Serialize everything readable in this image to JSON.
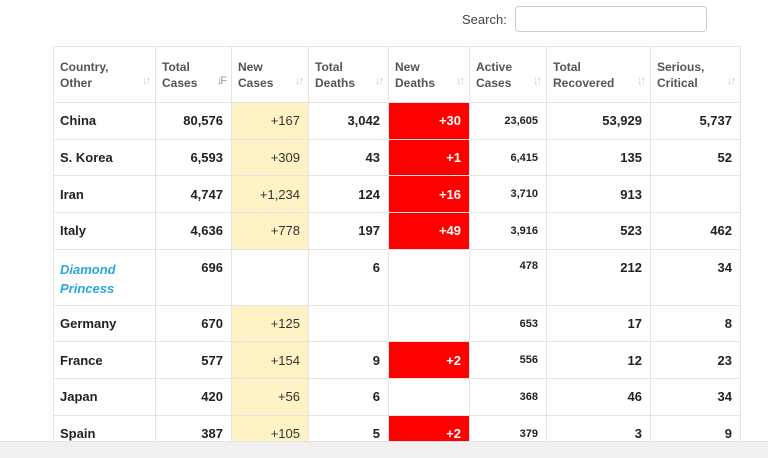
{
  "search": {
    "label": "Search:",
    "value": ""
  },
  "headers": [
    {
      "line1": "Country,",
      "line2": "Other",
      "sort": "↓↑"
    },
    {
      "line1": "Total",
      "line2": "Cases",
      "sort": "↓F"
    },
    {
      "line1": "New",
      "line2": "Cases",
      "sort": "↓↑"
    },
    {
      "line1": "Total",
      "line2": "Deaths",
      "sort": "↓↑"
    },
    {
      "line1": "New",
      "line2": "Deaths",
      "sort": "↓↑"
    },
    {
      "line1": "Active",
      "line2": "Cases",
      "sort": "↓↑"
    },
    {
      "line1": "Total",
      "line2": "Recovered",
      "sort": "↓↑"
    },
    {
      "line1": "Serious,",
      "line2": "Critical",
      "sort": "↓↑"
    }
  ],
  "rows": [
    {
      "country": "China",
      "total_cases": "80,576",
      "new_cases": "+167",
      "total_deaths": "3,042",
      "new_deaths": "+30",
      "active_cases": "23,605",
      "total_recovered": "53,929",
      "serious_critical": "5,737"
    },
    {
      "country": "S. Korea",
      "total_cases": "6,593",
      "new_cases": "+309",
      "total_deaths": "43",
      "new_deaths": "+1",
      "active_cases": "6,415",
      "total_recovered": "135",
      "serious_critical": "52"
    },
    {
      "country": "Iran",
      "total_cases": "4,747",
      "new_cases": "+1,234",
      "total_deaths": "124",
      "new_deaths": "+16",
      "active_cases": "3,710",
      "total_recovered": "913",
      "serious_critical": ""
    },
    {
      "country": "Italy",
      "total_cases": "4,636",
      "new_cases": "+778",
      "total_deaths": "197",
      "new_deaths": "+49",
      "active_cases": "3,916",
      "total_recovered": "523",
      "serious_critical": "462"
    },
    {
      "country": "Diamond Princess",
      "total_cases": "696",
      "new_cases": "",
      "total_deaths": "6",
      "new_deaths": "",
      "active_cases": "478",
      "total_recovered": "212",
      "serious_critical": "34"
    },
    {
      "country": "Germany",
      "total_cases": "670",
      "new_cases": "+125",
      "total_deaths": "",
      "new_deaths": "",
      "active_cases": "653",
      "total_recovered": "17",
      "serious_critical": "8"
    },
    {
      "country": "France",
      "total_cases": "577",
      "new_cases": "+154",
      "total_deaths": "9",
      "new_deaths": "+2",
      "active_cases": "556",
      "total_recovered": "12",
      "serious_critical": "23"
    },
    {
      "country": "Japan",
      "total_cases": "420",
      "new_cases": "+56",
      "total_deaths": "6",
      "new_deaths": "",
      "active_cases": "368",
      "total_recovered": "46",
      "serious_critical": "34"
    },
    {
      "country": "Spain",
      "total_cases": "387",
      "new_cases": "+105",
      "total_deaths": "5",
      "new_deaths": "+2",
      "active_cases": "379",
      "total_recovered": "3",
      "serious_critical": "9"
    }
  ],
  "colors": {
    "new_cases_bg": "#fff3c6",
    "new_deaths_bg": "#ff0000",
    "link": "#2aa7df"
  }
}
